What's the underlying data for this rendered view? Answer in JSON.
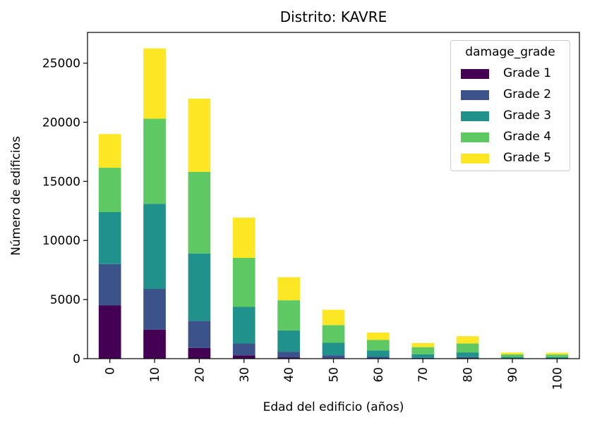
{
  "chart_data": {
    "type": "bar",
    "stacked": true,
    "title": "Distrito: KAVRE",
    "xlabel": "Edad del edificio (años)",
    "ylabel": "Número de edificios",
    "categories": [
      "0",
      "10",
      "20",
      "30",
      "40",
      "50",
      "60",
      "70",
      "80",
      "90",
      "100"
    ],
    "ylim": [
      0,
      27600
    ],
    "yticks": [
      0,
      5000,
      10000,
      15000,
      20000,
      25000
    ],
    "legend": {
      "title": "damage_grade",
      "position": "top-right"
    },
    "series": [
      {
        "name": "Grade 1",
        "color": "#440154",
        "values": [
          4500,
          2450,
          900,
          280,
          90,
          40,
          30,
          15,
          20,
          5,
          5
        ]
      },
      {
        "name": "Grade 2",
        "color": "#3b528b",
        "values": [
          3500,
          3450,
          2300,
          1000,
          500,
          250,
          120,
          60,
          110,
          30,
          25
        ]
      },
      {
        "name": "Grade 3",
        "color": "#21918c",
        "values": [
          4400,
          7200,
          5700,
          3100,
          1800,
          1050,
          550,
          300,
          400,
          110,
          100
        ]
      },
      {
        "name": "Grade 4",
        "color": "#5ec962",
        "values": [
          3750,
          7200,
          6900,
          4150,
          2550,
          1500,
          880,
          600,
          750,
          220,
          220
        ]
      },
      {
        "name": "Grade 5",
        "color": "#fde725",
        "values": [
          2850,
          5950,
          6200,
          3400,
          1950,
          1300,
          630,
          345,
          620,
          155,
          150
        ]
      }
    ]
  }
}
